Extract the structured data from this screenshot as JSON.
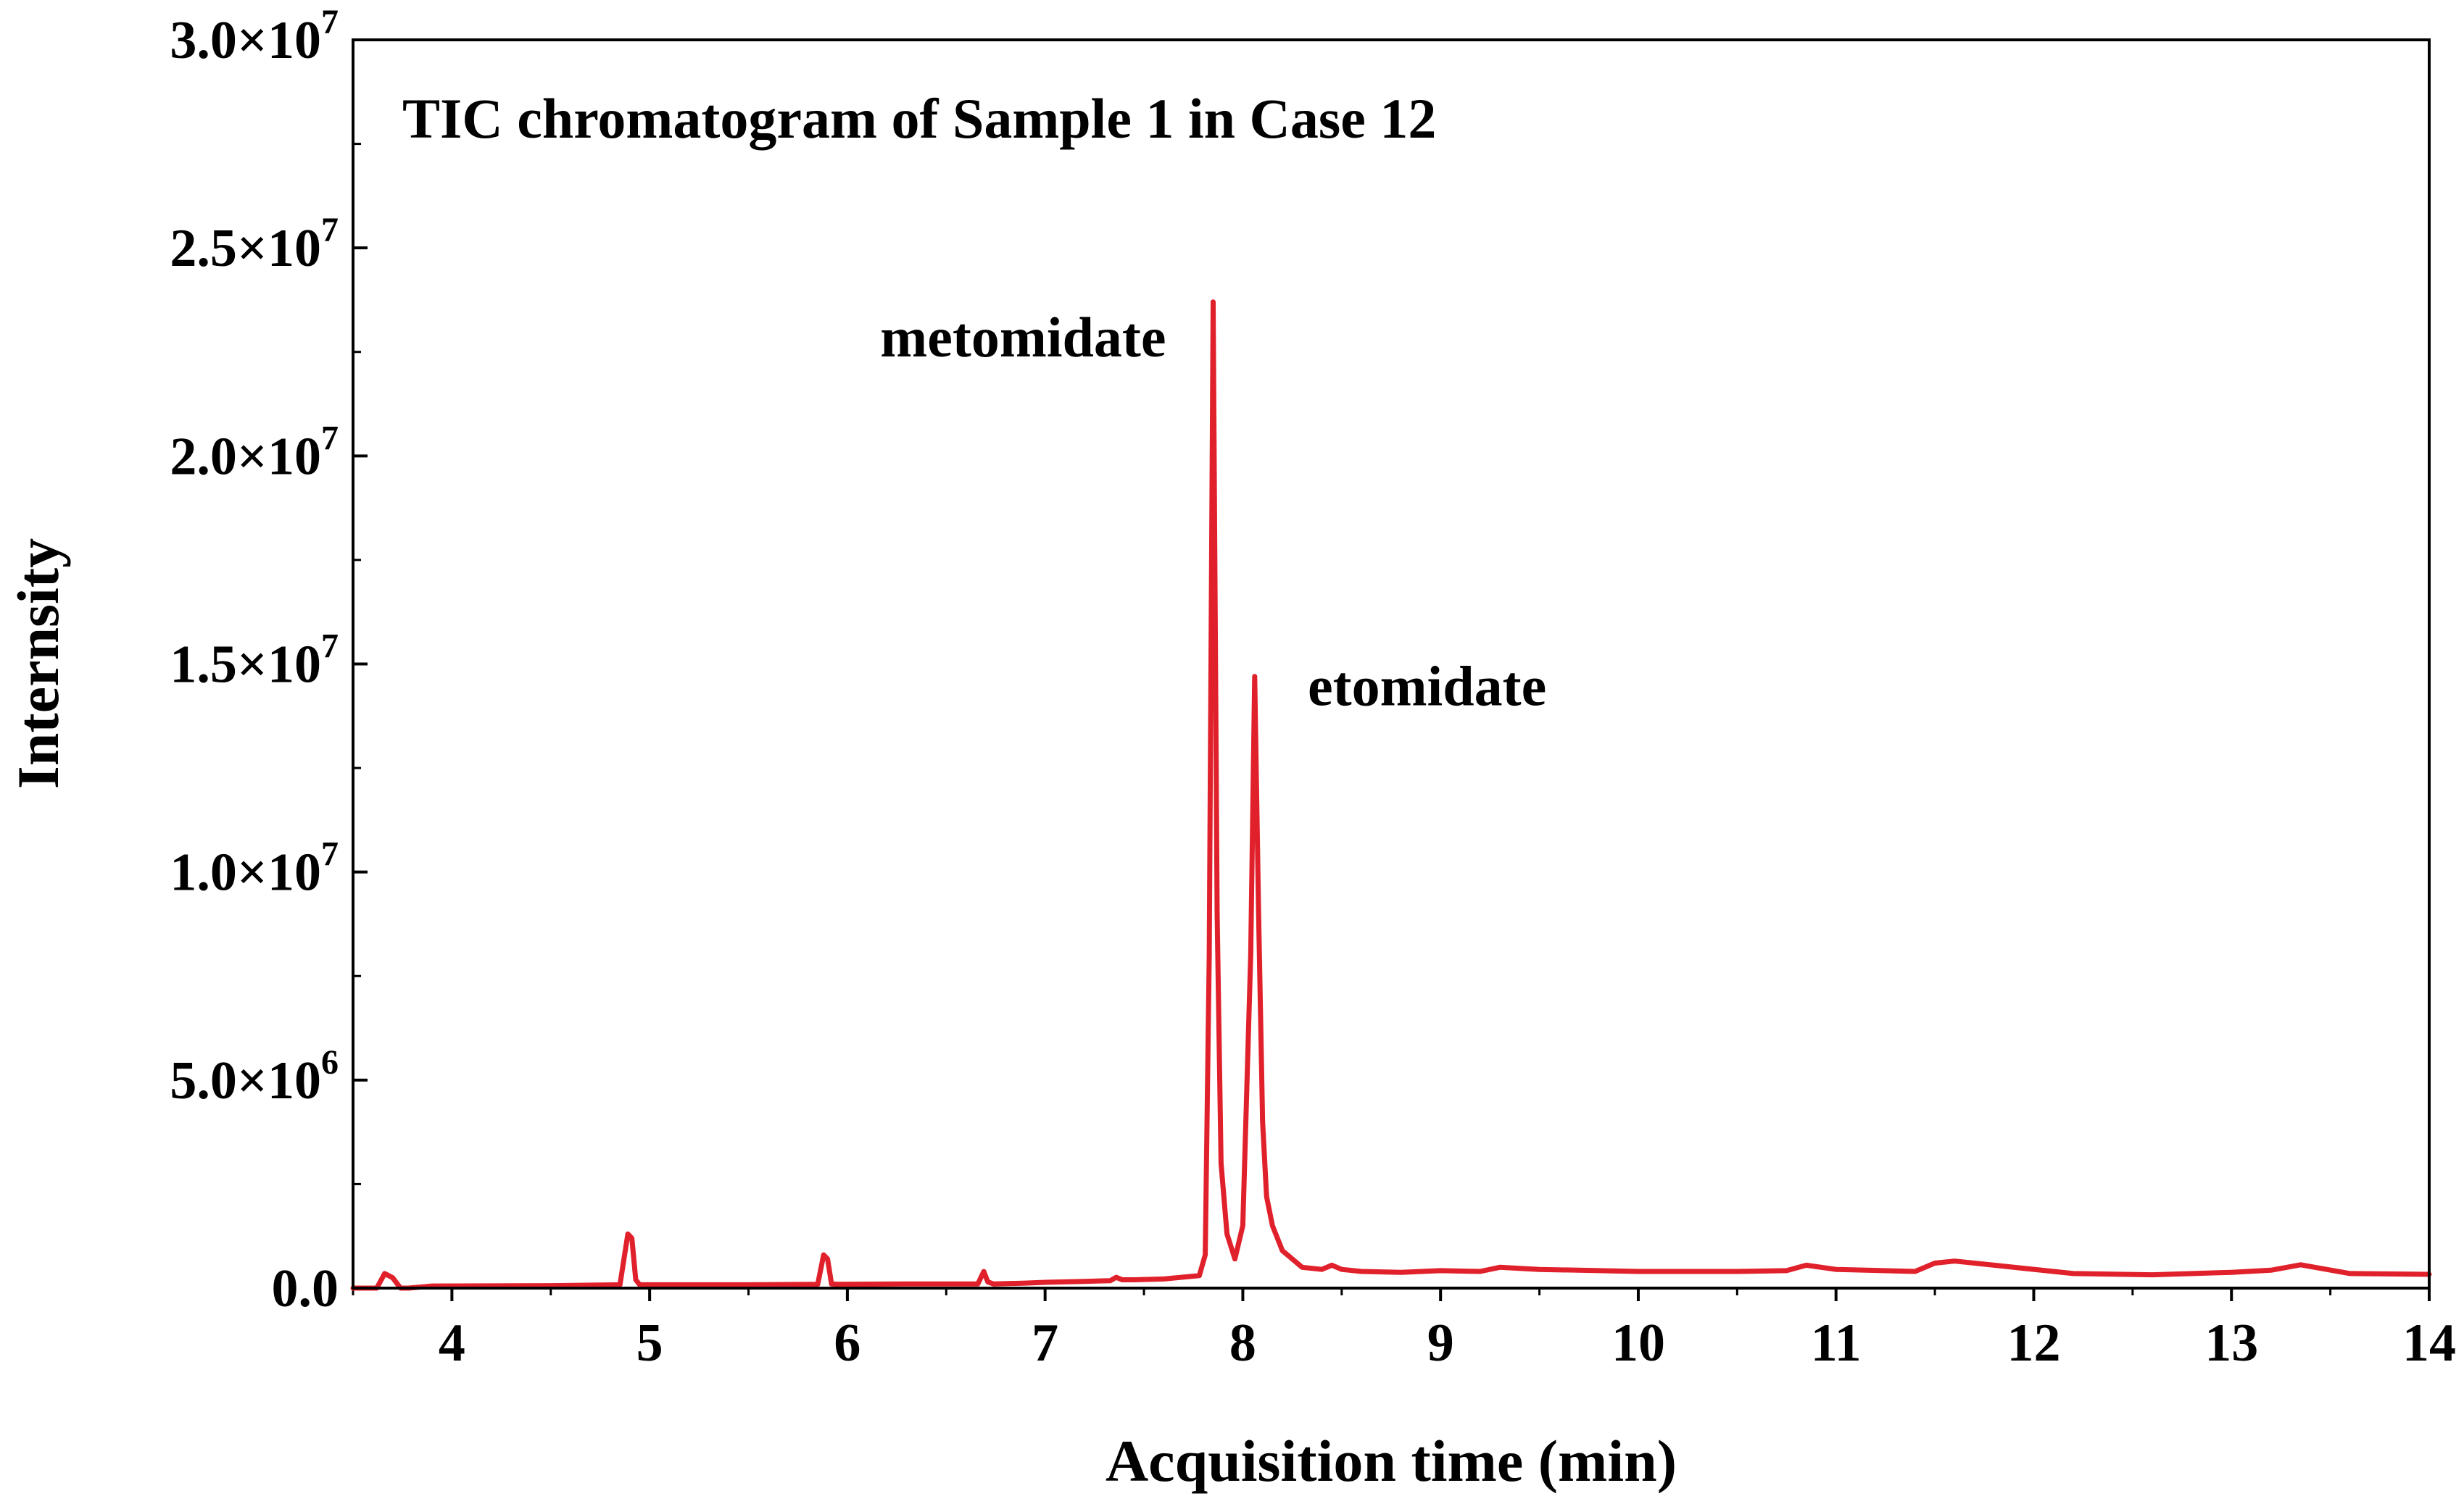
{
  "chart_data": {
    "type": "line",
    "title": "TIC chromatogram of Sample 1 in Case 12",
    "xlabel": "Acquisition time (min)",
    "ylabel": "Internsity",
    "xlim": [
      3.5,
      14
    ],
    "ylim": [
      0,
      30000000
    ],
    "x_ticks": [
      4,
      5,
      6,
      7,
      8,
      9,
      10,
      11,
      12,
      13,
      14
    ],
    "x_tick_labels": [
      "4",
      "5",
      "6",
      "7",
      "8",
      "9",
      "10",
      "11",
      "12",
      "13",
      "14"
    ],
    "y_ticks": [
      0,
      5000000,
      10000000,
      15000000,
      20000000,
      25000000,
      30000000
    ],
    "y_tick_labels": [
      {
        "mantissa": "0.0",
        "exponent": ""
      },
      {
        "mantissa": "5.0×10",
        "exponent": "6"
      },
      {
        "mantissa": "1.0×10",
        "exponent": "7"
      },
      {
        "mantissa": "1.5×10",
        "exponent": "7"
      },
      {
        "mantissa": "2.0×10",
        "exponent": "7"
      },
      {
        "mantissa": "2.5×10",
        "exponent": "7"
      },
      {
        "mantissa": "3.0×10",
        "exponent": "7"
      }
    ],
    "y_minor_step": 2500000,
    "grid": false,
    "legend": "none",
    "series": [
      {
        "name": "TIC",
        "color": "#e0202a",
        "x": [
          3.5,
          3.62,
          3.66,
          3.7,
          3.74,
          3.78,
          3.9,
          4.5,
          4.85,
          4.89,
          4.91,
          4.93,
          4.95,
          5.0,
          5.5,
          5.85,
          5.88,
          5.9,
          5.92,
          5.95,
          6.3,
          6.66,
          6.69,
          6.71,
          6.74,
          6.9,
          7.0,
          7.2,
          7.33,
          7.36,
          7.39,
          7.45,
          7.6,
          7.78,
          7.81,
          7.83,
          7.85,
          7.87,
          7.89,
          7.92,
          7.96,
          8.0,
          8.04,
          8.06,
          8.08,
          8.1,
          8.12,
          8.15,
          8.2,
          8.3,
          8.4,
          8.45,
          8.5,
          8.6,
          8.8,
          9.0,
          9.2,
          9.3,
          9.5,
          10.0,
          10.5,
          10.75,
          10.85,
          11.0,
          11.4,
          11.5,
          11.6,
          11.8,
          12.2,
          12.6,
          13.0,
          13.2,
          13.35,
          13.6,
          14.0
        ],
        "y": [
          0,
          0,
          350000,
          250000,
          0,
          0,
          50000,
          60000,
          80000,
          1300000,
          1200000,
          200000,
          80000,
          80000,
          80000,
          90000,
          800000,
          700000,
          100000,
          90000,
          100000,
          100000,
          400000,
          150000,
          100000,
          120000,
          140000,
          160000,
          180000,
          260000,
          200000,
          200000,
          220000,
          300000,
          800000,
          8000000,
          23700000,
          9000000,
          3000000,
          1300000,
          700000,
          1500000,
          8000000,
          14700000,
          9000000,
          4000000,
          2200000,
          1500000,
          900000,
          500000,
          450000,
          550000,
          450000,
          400000,
          380000,
          420000,
          400000,
          500000,
          450000,
          400000,
          400000,
          420000,
          550000,
          450000,
          400000,
          600000,
          650000,
          550000,
          350000,
          320000,
          380000,
          430000,
          560000,
          350000,
          330000
        ]
      }
    ],
    "annotations": [
      {
        "text": "metomidate",
        "x": 7.85,
        "y": 23700000
      },
      {
        "text": "etomidate",
        "x": 8.09,
        "y": 14700000
      }
    ]
  }
}
